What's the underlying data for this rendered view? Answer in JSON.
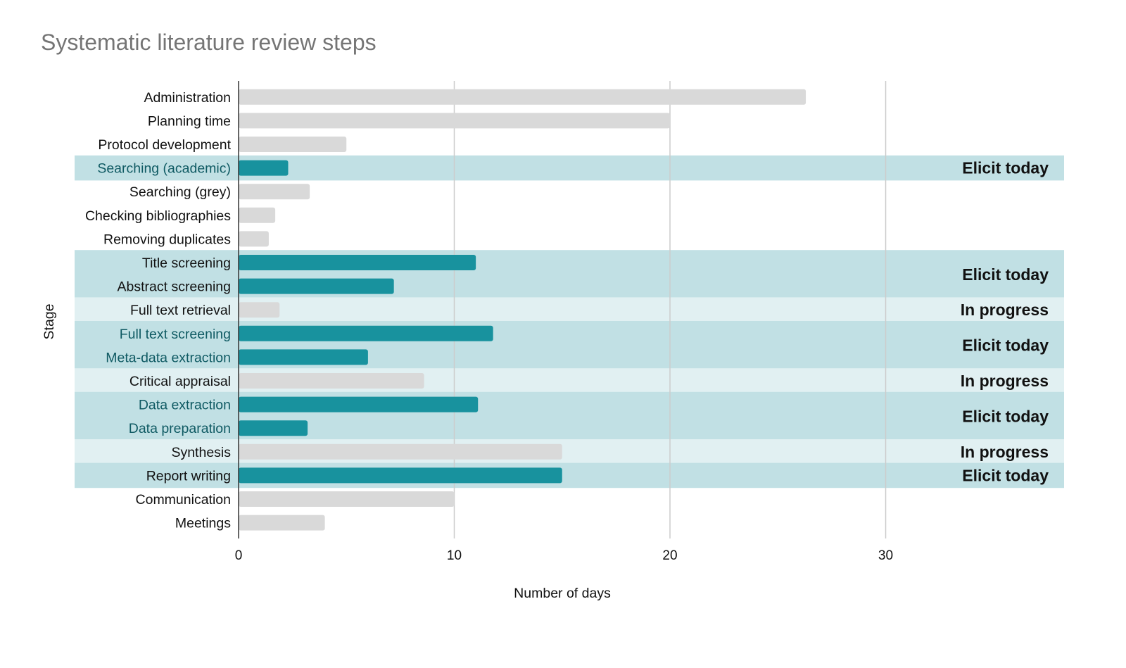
{
  "chart_data": {
    "type": "bar",
    "orientation": "horizontal",
    "title": "Systematic literature review steps",
    "xlabel": "Number of days",
    "ylabel": "Stage",
    "xlim": [
      0,
      38
    ],
    "xticks": [
      0,
      10,
      20,
      30
    ],
    "grid": "vertical",
    "legend": "none",
    "categories": [
      "Administration",
      "Planning time",
      "Protocol development",
      "Searching (academic)",
      "Searching (grey)",
      "Checking bibliographies",
      "Removing duplicates",
      "Title screening",
      "Abstract screening",
      "Full text retrieval",
      "Full text screening",
      "Meta-data extraction",
      "Critical appraisal",
      "Data extraction",
      "Data preparation",
      "Synthesis",
      "Report writing",
      "Communication",
      "Meetings"
    ],
    "values": [
      26.3,
      20,
      5,
      2.3,
      3.3,
      1.7,
      1.4,
      11,
      7.2,
      1.9,
      11.8,
      6,
      8.6,
      11.1,
      3.2,
      15,
      15,
      10,
      4
    ],
    "bar_status": [
      "other",
      "other",
      "other",
      "elicit",
      "other",
      "other",
      "other",
      "elicit",
      "elicit",
      "other",
      "elicit",
      "elicit",
      "other",
      "elicit",
      "elicit",
      "other",
      "elicit",
      "other",
      "other"
    ],
    "highlight_bands": [
      {
        "from": "Searching (academic)",
        "to": "Searching (academic)",
        "label": "Elicit today",
        "kind": "elicit"
      },
      {
        "from": "Title screening",
        "to": "Abstract screening",
        "label": "Elicit today",
        "kind": "elicit"
      },
      {
        "from": "Full text retrieval",
        "to": "Full text retrieval",
        "label": "In progress",
        "kind": "progress"
      },
      {
        "from": "Full text screening",
        "to": "Meta-data extraction",
        "label": "Elicit today",
        "kind": "elicit"
      },
      {
        "from": "Critical appraisal",
        "to": "Critical appraisal",
        "label": "In progress",
        "kind": "progress"
      },
      {
        "from": "Data extraction",
        "to": "Data preparation",
        "label": "Elicit today",
        "kind": "elicit"
      },
      {
        "from": "Synthesis",
        "to": "Synthesis",
        "label": "In progress",
        "kind": "progress"
      },
      {
        "from": "Report writing",
        "to": "Report writing",
        "label": "Elicit today",
        "kind": "elicit"
      }
    ],
    "colors": {
      "bar_default": "#d9d9d9",
      "bar_elicit": "#18929e",
      "band_elicit": "#c1e0e4",
      "band_progress": "#e1f0f2",
      "grid": "#cccccc",
      "axis": "#333333",
      "label_default": "#111111",
      "label_elicit": "#0f5a63"
    }
  }
}
